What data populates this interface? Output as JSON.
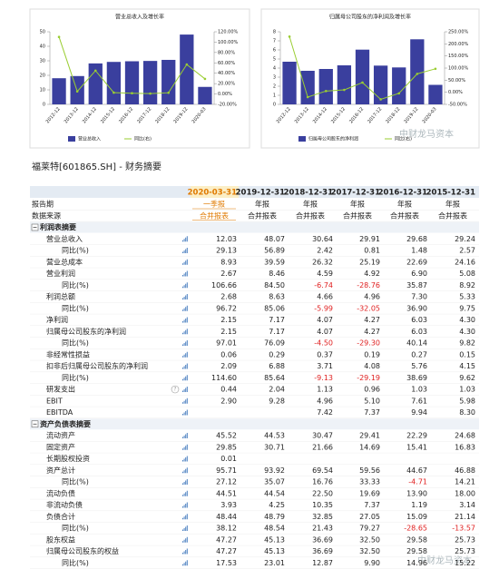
{
  "charts": [
    {
      "type": "bar",
      "title": "营业总收入及增长率",
      "categories": [
        "2012-12",
        "2013-12",
        "2014-12",
        "2015-12",
        "2016-12",
        "2017-12",
        "2018-12",
        "2019-12",
        "2020-03"
      ],
      "series": [
        {
          "name": "营业总收入",
          "color": "#3a3f9e",
          "values": [
            18,
            19.5,
            28.2,
            29.24,
            29.68,
            29.91,
            30.64,
            48.07,
            12.03
          ]
        },
        {
          "name": "同比(右)",
          "color": "#9acd32",
          "axis": "y2",
          "values": [
            110,
            5,
            45,
            2.57,
            1.48,
            0.81,
            2.42,
            56.89,
            29.13
          ]
        }
      ],
      "ylim": [
        0,
        50
      ],
      "yticks": [
        0,
        10,
        20,
        30,
        40,
        50
      ],
      "y2lim": [
        -20,
        120
      ],
      "y2ticks": [
        {
          "value": -20,
          "label": "-20.00%"
        },
        {
          "value": 0,
          "label": "0.00%"
        },
        {
          "value": 20,
          "label": "20.00%"
        },
        {
          "value": 40,
          "label": "40.00%"
        },
        {
          "value": 60,
          "label": "60.00%"
        },
        {
          "value": 80,
          "label": "80.00%"
        },
        {
          "value": 100,
          "label": "100.00%"
        },
        {
          "value": 120,
          "label": "120.00%"
        }
      ]
    },
    {
      "type": "bar",
      "title": "归属母公司股东的净利润及增长率",
      "categories": [
        "2012-12",
        "2013-12",
        "2014-12",
        "2015-12",
        "2016-12",
        "2017-12",
        "2018-12",
        "2019-12",
        "2020-03"
      ],
      "series": [
        {
          "name": "归属母公司股东的净利润",
          "color": "#3a3f9e",
          "values": [
            4.7,
            3.7,
            3.9,
            4.3,
            6.03,
            4.27,
            4.07,
            7.17,
            2.15
          ]
        },
        {
          "name": "同比(右)",
          "color": "#9acd32",
          "axis": "y2",
          "values": [
            230,
            -20,
            5,
            9.82,
            40.14,
            -29.3,
            -4.5,
            76.09,
            97.01
          ]
        }
      ],
      "ylim": [
        0,
        8
      ],
      "yticks": [
        0,
        1,
        2,
        3,
        4,
        5,
        6,
        7,
        8
      ],
      "y2lim": [
        -50,
        250
      ],
      "y2ticks": [
        {
          "value": -50,
          "label": "-50.00%"
        },
        {
          "value": 0,
          "label": "0.00%"
        },
        {
          "value": 50,
          "label": "50.00%"
        },
        {
          "value": 100,
          "label": "100.00%"
        },
        {
          "value": 150,
          "label": "150.00%"
        },
        {
          "value": 200,
          "label": "200.00%"
        },
        {
          "value": 250,
          "label": "250.00%"
        }
      ]
    }
  ],
  "watermark": "中财龙马资本",
  "table": {
    "title": "福莱特[601865.SH] - 财务摘要",
    "columns": [
      "2020-03-31",
      "2019-12-31",
      "2018-12-31",
      "2017-12-31",
      "2016-12-31",
      "2015-12-31"
    ],
    "rows": [
      {
        "label": "报告期",
        "cells": [
          "一季报",
          "年报",
          "年报",
          "年报",
          "年报",
          "年报"
        ]
      },
      {
        "label": "数据来源",
        "cells": [
          "合并报表",
          "合并报表",
          "合并报表",
          "合并报表",
          "合并报表",
          "合并报表"
        ]
      },
      {
        "label": "利润表摘要"
      },
      {
        "label": "营业总收入",
        "cells": [
          "12.03",
          "48.07",
          "30.64",
          "29.91",
          "29.68",
          "29.24"
        ]
      },
      {
        "label": "同比(%)",
        "sub": true,
        "cells": [
          "29.13",
          "56.89",
          "2.42",
          "0.81",
          "1.48",
          "2.57"
        ]
      },
      {
        "label": "营业总成本",
        "cells": [
          "8.93",
          "39.59",
          "26.32",
          "25.19",
          "22.69",
          "24.16"
        ]
      },
      {
        "label": "营业利润",
        "cells": [
          "2.67",
          "8.46",
          "4.59",
          "4.92",
          "6.90",
          "5.08"
        ]
      },
      {
        "label": "同比(%)",
        "sub": true,
        "cells": [
          "106.66",
          "84.50",
          "-6.74",
          "-28.76",
          "35.87",
          "8.92"
        ]
      },
      {
        "label": "利润总额",
        "cells": [
          "2.68",
          "8.63",
          "4.66",
          "4.96",
          "7.30",
          "5.33"
        ]
      },
      {
        "label": "同比(%)",
        "sub": true,
        "cells": [
          "96.72",
          "85.06",
          "-5.99",
          "-32.05",
          "36.90",
          "9.75"
        ]
      },
      {
        "label": "净利润",
        "cells": [
          "2.15",
          "7.17",
          "4.07",
          "4.27",
          "6.03",
          "4.30"
        ]
      },
      {
        "label": "归属母公司股东的净利润",
        "cells": [
          "2.15",
          "7.17",
          "4.07",
          "4.27",
          "6.03",
          "4.30"
        ]
      },
      {
        "label": "同比(%)",
        "sub": true,
        "cells": [
          "97.01",
          "76.09",
          "-4.50",
          "-29.30",
          "40.14",
          "9.82"
        ]
      },
      {
        "label": "非经常性损益",
        "cells": [
          "0.06",
          "0.29",
          "0.37",
          "0.19",
          "0.27",
          "0.15"
        ]
      },
      {
        "label": "扣非后归属母公司股东的净利润",
        "cells": [
          "2.09",
          "6.88",
          "3.71",
          "4.08",
          "5.76",
          "4.15"
        ]
      },
      {
        "label": "同比(%)",
        "sub": true,
        "cells": [
          "114.60",
          "85.64",
          "-9.13",
          "-29.19",
          "38.69",
          "9.62"
        ]
      },
      {
        "label": "研发支出",
        "help": "?",
        "cells": [
          "0.44",
          "2.04",
          "1.13",
          "0.96",
          "1.03",
          "1.03"
        ]
      },
      {
        "label": "EBIT",
        "cells": [
          "2.90",
          "9.28",
          "4.96",
          "5.10",
          "7.61",
          "5.98"
        ]
      },
      {
        "label": "EBITDA",
        "cells": [
          null,
          null,
          "7.42",
          "7.37",
          "9.94",
          "8.30"
        ]
      },
      {
        "label": "资产负债表摘要"
      },
      {
        "label": "流动资产",
        "cells": [
          "45.52",
          "44.53",
          "30.47",
          "29.41",
          "22.29",
          "24.68"
        ]
      },
      {
        "label": "固定资产",
        "cells": [
          "29.85",
          "30.71",
          "21.66",
          "14.69",
          "15.41",
          "16.83"
        ]
      },
      {
        "label": "长期股权投资",
        "cells": [
          "0.01",
          null,
          null,
          null,
          null,
          null
        ]
      },
      {
        "label": "资产总计",
        "cells": [
          "95.71",
          "93.92",
          "69.54",
          "59.56",
          "44.67",
          "46.88"
        ]
      },
      {
        "label": "同比(%)",
        "sub": true,
        "cells": [
          "27.12",
          "35.07",
          "16.76",
          "33.33",
          "-4.71",
          "14.21"
        ]
      },
      {
        "label": "流动负债",
        "cells": [
          "44.51",
          "44.54",
          "22.50",
          "19.69",
          "13.90",
          "18.00"
        ]
      },
      {
        "label": "非流动负债",
        "cells": [
          "3.93",
          "4.25",
          "10.35",
          "7.37",
          "1.19",
          "3.14"
        ]
      },
      {
        "label": "负债合计",
        "cells": [
          "48.44",
          "48.79",
          "32.85",
          "27.05",
          "15.09",
          "21.14"
        ]
      },
      {
        "label": "同比(%)",
        "sub": true,
        "cells": [
          "38.12",
          "48.54",
          "21.43",
          "79.27",
          "-28.65",
          "-13.57"
        ]
      },
      {
        "label": "股东权益",
        "cells": [
          "47.27",
          "45.13",
          "36.69",
          "32.50",
          "29.58",
          "25.73"
        ]
      },
      {
        "label": "归属母公司股东的权益",
        "cells": [
          "47.27",
          "45.13",
          "36.69",
          "32.50",
          "29.58",
          "25.73"
        ]
      },
      {
        "label": "同比(%)",
        "sub": true,
        "cells": [
          "17.53",
          "23.01",
          "12.87",
          "9.90",
          "14.96",
          "15.22"
        ]
      }
    ]
  }
}
